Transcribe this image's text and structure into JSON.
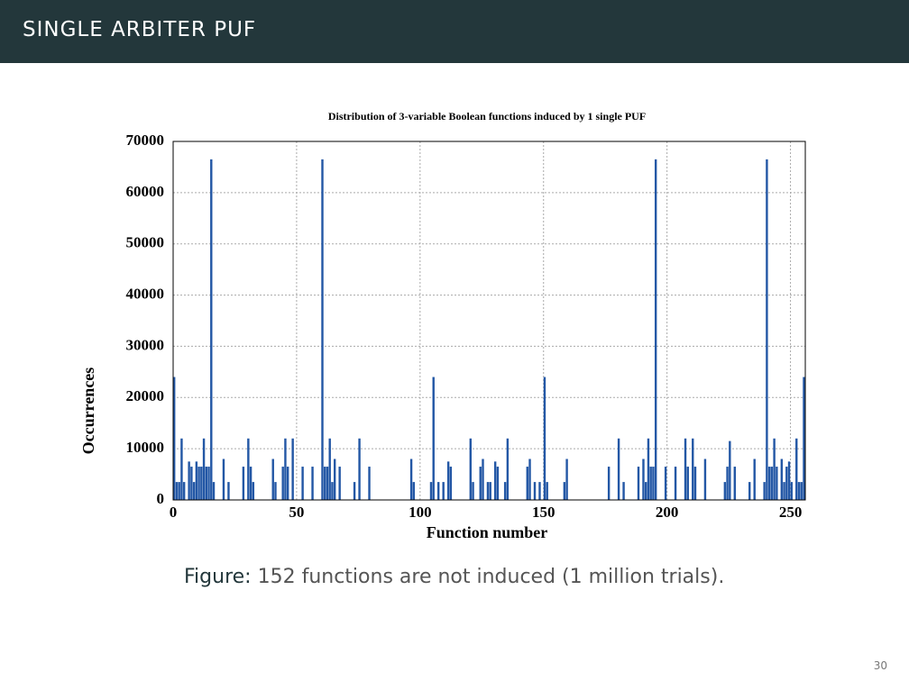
{
  "header": {
    "title": "SINGLE ARBITER PUF"
  },
  "chart_data": {
    "type": "bar",
    "title": "Distribution of 3-variable Boolean functions induced by 1 single PUF",
    "x_label": "Function number",
    "y_label": "Occurrences",
    "x": [
      0,
      1,
      2,
      3,
      4,
      6,
      7,
      8,
      9,
      10,
      11,
      12,
      13,
      14,
      15,
      16,
      20,
      22,
      28,
      30,
      31,
      32,
      40,
      41,
      44,
      45,
      46,
      48,
      52,
      56,
      60,
      61,
      62,
      63,
      64,
      65,
      67,
      73,
      75,
      79,
      96,
      97,
      104,
      105,
      107,
      109,
      111,
      112,
      120,
      121,
      124,
      125,
      127,
      128,
      130,
      131,
      134,
      135,
      143,
      144,
      146,
      148,
      150,
      151,
      158,
      159,
      176,
      180,
      182,
      188,
      190,
      191,
      192,
      193,
      194,
      195,
      199,
      203,
      207,
      208,
      210,
      211,
      215,
      223,
      224,
      225,
      227,
      233,
      235,
      239,
      240,
      241,
      242,
      243,
      244,
      246,
      247,
      248,
      249,
      250,
      252,
      253,
      254,
      255
    ],
    "values": [
      24000,
      3500,
      3500,
      12000,
      3500,
      7500,
      6500,
      3500,
      7500,
      6500,
      6500,
      12000,
      6500,
      6500,
      66500,
      3500,
      8000,
      3500,
      6500,
      12000,
      6500,
      3500,
      8000,
      3500,
      6500,
      12000,
      6500,
      12000,
      6500,
      6500,
      66500,
      6500,
      6500,
      12000,
      3500,
      8000,
      6500,
      3500,
      12000,
      6500,
      8000,
      3500,
      3500,
      24000,
      3500,
      3500,
      7500,
      6500,
      12000,
      3500,
      6500,
      8000,
      3500,
      3500,
      7500,
      6500,
      3500,
      12000,
      6500,
      8000,
      3500,
      3500,
      24000,
      3500,
      3500,
      8000,
      6500,
      12000,
      3500,
      6500,
      8000,
      3500,
      12000,
      6500,
      6500,
      66500,
      6500,
      6500,
      12000,
      6500,
      12000,
      6500,
      8000,
      3500,
      6500,
      11500,
      6500,
      3500,
      8000,
      3500,
      66500,
      6500,
      6500,
      12000,
      6500,
      8000,
      3500,
      6500,
      7500,
      3500,
      12000,
      3500,
      3500,
      24000
    ],
    "color": "#2357a5",
    "xlim": [
      0,
      256
    ],
    "xticks": [
      0,
      50,
      100,
      150,
      200,
      250
    ],
    "ylim": [
      0,
      70000
    ],
    "yticks": [
      0,
      10000,
      20000,
      30000,
      40000,
      50000,
      60000,
      70000
    ],
    "grid": true
  },
  "caption": {
    "label": "Figure:",
    "text": "152 functions are not induced (1 million trials)."
  },
  "page_number": "30"
}
